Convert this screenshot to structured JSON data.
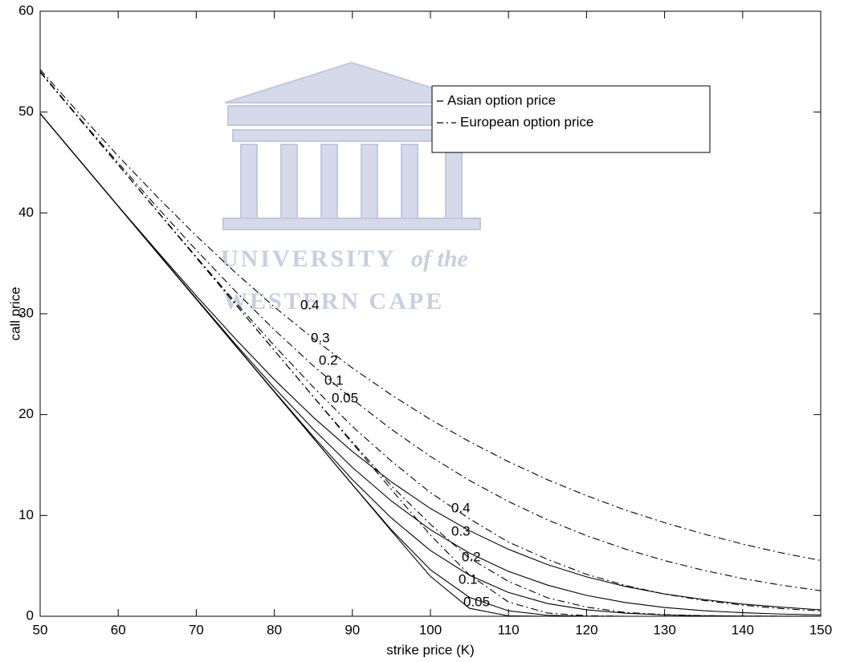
{
  "chart_data": {
    "type": "line",
    "xlabel": "strike price (K)",
    "ylabel": "call price",
    "x": [
      50,
      55,
      60,
      65,
      70,
      75,
      80,
      85,
      90,
      95,
      100,
      105,
      110,
      115,
      120,
      125,
      130,
      135,
      140,
      145,
      150
    ],
    "xlim": [
      50,
      150
    ],
    "xticks": [
      50,
      60,
      70,
      80,
      90,
      100,
      110,
      120,
      130,
      140,
      150
    ],
    "ylim": [
      0,
      60
    ],
    "yticks": [
      0,
      10,
      20,
      30,
      40,
      50,
      60
    ],
    "watermark": [
      "UNIVERSITY",
      "of the",
      "WESTERN CAPE"
    ],
    "series": [
      {
        "name": "Asian option price",
        "color": "#000000",
        "style": "solid",
        "curves": [
          {
            "label": "0.4",
            "values": [
              49.86,
              45.26,
              40.67,
              36.2,
              31.78,
              27.52,
              23.47,
              19.73,
              16.34,
              13.32,
              10.69,
              8.49,
              6.64,
              5.12,
              3.91,
              2.95,
              2.21,
              1.66,
              1.21,
              0.9,
              0.64
            ]
          },
          {
            "label": "0.3",
            "values": [
              49.86,
              45.26,
              40.66,
              36.07,
              31.51,
              27.01,
              22.66,
              18.55,
              14.76,
              11.43,
              8.58,
              6.27,
              4.45,
              3.09,
              2.07,
              1.36,
              0.87,
              0.55,
              0.35,
              0.22,
              0.14
            ]
          },
          {
            "label": "0.2",
            "values": [
              49.86,
              45.26,
              40.66,
              36.06,
              31.46,
              26.86,
              22.3,
              17.82,
              13.55,
              9.74,
              6.52,
              4.07,
              2.36,
              1.26,
              0.64,
              0.3,
              0.13,
              0.05,
              0.02,
              0.01,
              0
            ]
          },
          {
            "label": "0.1",
            "values": [
              49.86,
              45.26,
              40.66,
              36.06,
              31.46,
              26.86,
              22.26,
              17.66,
              13.06,
              8.57,
              4.61,
              1.87,
              0.54,
              0.1,
              0.01,
              0,
              0,
              0,
              0,
              0,
              0
            ]
          },
          {
            "label": "0.05",
            "values": [
              49.86,
              45.26,
              40.66,
              36.06,
              31.46,
              26.86,
              22.26,
              17.66,
              13.06,
              8.46,
              3.96,
              0.79,
              0.04,
              0,
              0,
              0,
              0,
              0,
              0,
              0,
              0
            ]
          }
        ]
      },
      {
        "name": "European option price",
        "color": "#000000",
        "style": "dashdot",
        "curves": [
          {
            "label": "0.4",
            "values": [
              54.22,
              49.86,
              45.64,
              41.6,
              37.73,
              34.1,
              30.68,
              27.53,
              24.62,
              21.95,
              19.51,
              17.32,
              15.33,
              13.54,
              11.96,
              10.53,
              9.28,
              8.16,
              7.16,
              6.28,
              5.53
            ]
          },
          {
            "label": "0.3",
            "values": [
              54.03,
              49.43,
              44.96,
              40.56,
              36.31,
              32.25,
              28.41,
              24.83,
              21.53,
              18.54,
              15.85,
              13.47,
              11.38,
              9.56,
              7.99,
              6.66,
              5.52,
              4.56,
              3.74,
              3.08,
              2.53
            ]
          },
          {
            "label": "0.2",
            "values": [
              53.96,
              49.36,
              44.77,
              40.2,
              35.64,
              31.16,
              26.83,
              22.72,
              18.82,
              15.39,
              12.26,
              9.67,
              7.35,
              5.65,
              4.16,
              3.05,
              2.2,
              1.57,
              1.1,
              0.76,
              0.53
            ]
          },
          {
            "label": "0.1",
            "values": [
              53.96,
              49.36,
              44.76,
              40.16,
              35.56,
              30.96,
              26.36,
              21.77,
              17.28,
              12.93,
              9.12,
              5.76,
              3.46,
              1.83,
              0.91,
              0.37,
              0.16,
              0.06,
              0.02,
              0.01,
              0
            ]
          },
          {
            "label": "0.05",
            "values": [
              53.96,
              49.36,
              44.76,
              40.16,
              35.56,
              30.96,
              26.36,
              21.76,
              17.16,
              12.56,
              8.05,
              4.1,
              1.41,
              0.32,
              0.05,
              0,
              0,
              0,
              0,
              0,
              0
            ]
          }
        ]
      }
    ]
  }
}
